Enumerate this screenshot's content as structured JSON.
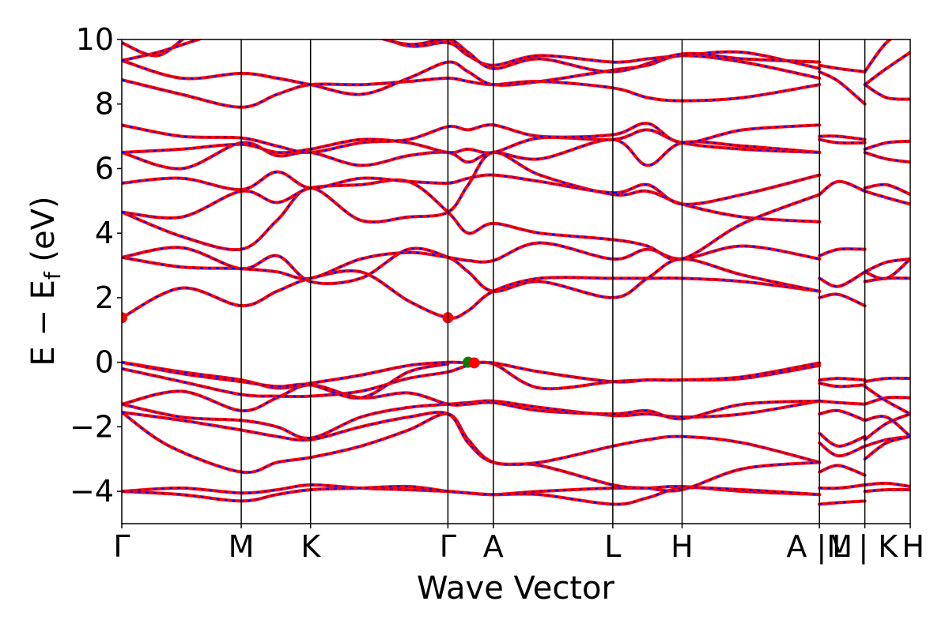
{
  "chart_data": {
    "type": "line",
    "title": "",
    "xlabel": "Wave Vector",
    "ylabel": "E − E_f (eV)",
    "ylabel_parts": {
      "main": "E − E",
      "sub": "f",
      "tail": " (eV)"
    },
    "ylim": [
      -5,
      10
    ],
    "yticks": [
      -4,
      -2,
      0,
      2,
      4,
      6,
      8,
      10
    ],
    "ytick_labels": [
      "−4",
      "−2",
      "0",
      "2",
      "4",
      "6",
      "8",
      "10"
    ],
    "kpoint_labels": [
      {
        "label": "Γ",
        "k": 0.0
      },
      {
        "label": "M",
        "k": 1.0
      },
      {
        "label": "K",
        "k": 1.58
      },
      {
        "label": "Γ",
        "k": 2.73
      },
      {
        "label": "A",
        "k": 3.11
      },
      {
        "label": "L",
        "k": 4.11
      },
      {
        "label": "H",
        "k": 4.69
      },
      {
        "label": "A |M",
        "k": 5.84
      },
      {
        "label": "L | K",
        "k": 6.22
      },
      {
        "label": "H",
        "k": 6.6
      }
    ],
    "xlim": [
      0,
      6.6
    ],
    "series_colors": {
      "primary": "#ff0000",
      "secondary": "#0000ff"
    },
    "markers": [
      {
        "label": "cbm",
        "k": 0.0,
        "E": 1.38,
        "color": "#ff0000"
      },
      {
        "label": "cbm",
        "k": 2.73,
        "E": 1.38,
        "color": "#ff0000"
      },
      {
        "label": "vbm",
        "k": 2.9,
        "E": 0.0,
        "color": "#008000"
      },
      {
        "label": "vbm",
        "k": 2.95,
        "E": -0.02,
        "color": "#ff0000"
      }
    ],
    "bands": [
      {
        "k": [
          0,
          0.5,
          1.0,
          1.3,
          1.58,
          2.0,
          2.4,
          2.73,
          2.9,
          3.11,
          3.5,
          4.11,
          4.4,
          4.69,
          5.2,
          5.84
        ],
        "E": [
          -4.0,
          -3.9,
          -4.05,
          -3.95,
          -3.8,
          -3.9,
          -3.95,
          -4.0,
          -4.05,
          -4.1,
          -4.0,
          -3.9,
          -3.9,
          -3.85,
          -4.0,
          -4.1
        ]
      },
      {
        "k": [
          0,
          0.5,
          1.0,
          1.3,
          1.58,
          2.0,
          2.4,
          2.73,
          2.9,
          3.11,
          3.5,
          4.11,
          4.4,
          4.69,
          5.2,
          5.84
        ],
        "E": [
          -4.0,
          -4.1,
          -4.3,
          -4.1,
          -3.95,
          -3.9,
          -3.85,
          -4.0,
          -4.05,
          -4.1,
          -4.1,
          -4.4,
          -4.2,
          -3.9,
          -3.95,
          -4.1
        ]
      },
      {
        "k": [
          0,
          0.4,
          1.0,
          1.3,
          1.58,
          2.0,
          2.4,
          2.73,
          2.9,
          3.11,
          3.5,
          4.11,
          4.4,
          4.69,
          5.2,
          5.84
        ],
        "E": [
          -1.55,
          -2.6,
          -3.4,
          -3.1,
          -2.95,
          -2.6,
          -2.1,
          -1.6,
          -2.4,
          -3.1,
          -3.2,
          -3.8,
          -3.9,
          -3.95,
          -3.3,
          -3.1
        ]
      },
      {
        "k": [
          0,
          0.5,
          1.0,
          1.3,
          1.58,
          2.0,
          2.4,
          2.73,
          2.9,
          3.11,
          3.5,
          4.11,
          4.4,
          4.69,
          5.2,
          5.84
        ],
        "E": [
          -1.55,
          -1.8,
          -2.1,
          -2.3,
          -2.4,
          -2.0,
          -1.7,
          -1.6,
          -2.5,
          -3.1,
          -3.1,
          -2.6,
          -2.4,
          -2.3,
          -2.5,
          -3.1
        ]
      },
      {
        "k": [
          0,
          0.5,
          1.0,
          1.3,
          1.58,
          2.0,
          2.4,
          2.73,
          2.9,
          3.11,
          3.5,
          4.11,
          4.4,
          4.69,
          5.2,
          5.84
        ],
        "E": [
          -1.3,
          -1.7,
          -1.8,
          -2.0,
          -2.35,
          -1.7,
          -1.4,
          -1.3,
          -1.25,
          -1.2,
          -1.4,
          -1.65,
          -1.6,
          -1.7,
          -1.6,
          -1.2
        ]
      },
      {
        "k": [
          0,
          0.5,
          1.0,
          1.3,
          1.58,
          2.0,
          2.4,
          2.73,
          2.9,
          3.11,
          3.5,
          4.11,
          4.4,
          4.69,
          5.2,
          5.84
        ],
        "E": [
          -1.3,
          -0.9,
          -1.5,
          -1.1,
          -0.7,
          -1.1,
          -0.95,
          -1.3,
          -1.3,
          -1.25,
          -1.5,
          -1.6,
          -1.5,
          -1.75,
          -1.3,
          -1.2
        ]
      },
      {
        "k": [
          0,
          0.5,
          1.0,
          1.3,
          1.58,
          2.0,
          2.4,
          2.73,
          2.9,
          3.11,
          3.5,
          4.11,
          4.4,
          4.69,
          5.2,
          5.84
        ],
        "E": [
          -0.2,
          -0.6,
          -1.0,
          -1.05,
          -1.05,
          -0.9,
          -0.5,
          -0.3,
          -0.1,
          -0.05,
          -0.8,
          -0.6,
          -0.55,
          -0.55,
          -0.5,
          -0.1
        ]
      },
      {
        "k": [
          0,
          0.5,
          1.0,
          1.3,
          1.58,
          2.0,
          2.4,
          2.73,
          2.9,
          3.11,
          3.5,
          4.11,
          4.4,
          4.69,
          5.2,
          5.84
        ],
        "E": [
          0.0,
          -0.3,
          -0.55,
          -0.8,
          -0.65,
          -0.4,
          -0.1,
          0.0,
          -0.02,
          -0.02,
          -0.3,
          -0.6,
          -0.55,
          -0.55,
          -0.45,
          -0.02
        ]
      },
      {
        "k": [
          0,
          0.5,
          1.0,
          1.3,
          1.58,
          2.0,
          2.4,
          2.73
        ],
        "E": [
          0.0,
          -0.35,
          -0.6,
          -0.75,
          -0.7,
          -1.1,
          -0.3,
          -0.05
        ]
      },
      {
        "k": [
          0,
          0.5,
          1.0,
          1.3,
          1.58,
          2.0,
          2.4,
          2.73,
          2.9,
          3.11,
          3.5,
          4.11,
          4.4,
          4.69,
          5.2,
          5.84
        ],
        "E": [
          1.38,
          2.3,
          1.75,
          2.2,
          2.6,
          2.8,
          1.9,
          1.38,
          1.6,
          2.2,
          2.6,
          2.6,
          2.6,
          2.6,
          2.5,
          2.2
        ]
      },
      {
        "k": [
          0,
          0.5,
          1.0,
          1.3,
          1.58,
          2.0,
          2.4,
          2.73,
          2.9,
          3.11,
          3.5,
          4.11,
          4.4,
          4.69,
          5.2,
          5.84
        ],
        "E": [
          3.25,
          3.55,
          2.9,
          3.3,
          2.5,
          2.6,
          3.5,
          3.25,
          2.8,
          2.2,
          2.5,
          2.0,
          2.6,
          3.2,
          2.7,
          2.2
        ]
      },
      {
        "k": [
          0,
          0.5,
          1.0,
          1.3,
          1.58,
          2.0,
          2.4,
          2.73,
          2.9,
          3.11,
          3.5,
          4.11,
          4.4,
          4.69,
          5.2,
          5.84
        ],
        "E": [
          3.25,
          2.95,
          2.9,
          2.8,
          2.6,
          3.2,
          3.4,
          3.25,
          3.15,
          3.15,
          3.7,
          3.2,
          3.5,
          3.2,
          3.6,
          3.2
        ]
      },
      {
        "k": [
          0,
          0.5,
          1.0,
          1.3,
          1.58,
          2.0,
          2.4,
          2.73,
          2.9,
          3.11,
          3.5,
          4.11,
          4.4,
          4.69,
          5.2,
          5.84
        ],
        "E": [
          4.65,
          3.9,
          3.5,
          4.4,
          5.4,
          4.4,
          4.5,
          4.65,
          5.5,
          6.5,
          5.8,
          5.2,
          5.3,
          4.9,
          4.5,
          4.35
        ]
      },
      {
        "k": [
          0,
          0.5,
          1.0,
          1.3,
          1.58,
          2.0,
          2.4,
          2.73,
          2.9,
          3.11,
          3.5,
          4.11,
          4.4,
          4.69,
          5.2,
          5.84
        ],
        "E": [
          4.65,
          4.5,
          5.3,
          4.95,
          5.4,
          5.5,
          5.6,
          4.65,
          4.0,
          4.3,
          4.0,
          3.8,
          3.6,
          3.2,
          4.3,
          5.2
        ]
      },
      {
        "k": [
          0,
          0.5,
          1.0,
          1.3,
          1.58,
          2.0,
          2.4,
          2.73,
          2.9,
          3.11,
          3.5,
          4.11,
          4.4,
          4.69,
          5.2,
          5.84
        ],
        "E": [
          5.55,
          5.7,
          5.35,
          5.9,
          5.4,
          5.7,
          5.6,
          5.55,
          5.7,
          5.8,
          5.6,
          5.25,
          5.5,
          4.9,
          5.2,
          5.8
        ]
      },
      {
        "k": [
          0,
          0.5,
          1.0,
          1.3,
          1.58,
          2.0,
          2.4,
          2.73,
          2.9,
          3.11,
          3.5,
          4.11,
          4.4,
          4.69,
          5.2,
          5.84
        ],
        "E": [
          6.5,
          6.0,
          6.8,
          6.4,
          6.5,
          6.1,
          6.4,
          6.5,
          6.2,
          6.5,
          6.3,
          6.9,
          6.1,
          6.8,
          6.7,
          6.5
        ]
      },
      {
        "k": [
          0,
          0.5,
          1.0,
          1.3,
          1.58,
          2.0,
          2.4,
          2.73,
          2.9,
          3.11,
          3.5,
          4.11,
          4.4,
          4.69,
          5.2,
          5.84
        ],
        "E": [
          6.5,
          6.6,
          6.75,
          6.5,
          6.6,
          6.9,
          6.8,
          6.5,
          6.6,
          6.5,
          6.95,
          6.9,
          7.2,
          6.8,
          6.6,
          6.5
        ]
      },
      {
        "k": [
          0,
          0.5,
          1.0,
          1.3,
          1.58,
          2.0,
          2.4,
          2.73,
          2.9,
          3.11,
          3.5,
          4.11,
          4.4,
          4.69,
          5.2,
          5.84
        ],
        "E": [
          7.35,
          7.0,
          6.95,
          6.7,
          6.5,
          6.8,
          6.9,
          7.3,
          7.2,
          7.35,
          7.0,
          7.05,
          7.4,
          6.8,
          7.2,
          7.35
        ]
      },
      {
        "k": [
          0,
          0.5,
          1.0,
          1.3,
          1.58,
          2.0,
          2.4,
          2.73,
          2.9,
          3.11,
          3.5,
          4.11,
          4.4,
          4.69,
          5.2,
          5.84
        ],
        "E": [
          8.75,
          8.3,
          7.9,
          8.3,
          8.6,
          8.6,
          8.7,
          8.8,
          8.7,
          8.6,
          8.7,
          8.5,
          8.2,
          8.1,
          8.2,
          8.6
        ]
      },
      {
        "k": [
          0,
          0.5,
          1.0,
          1.3,
          1.58,
          2.0,
          2.4,
          2.73,
          2.9,
          3.11,
          3.5,
          4.11,
          4.4,
          4.69,
          5.2,
          5.84
        ],
        "E": [
          9.35,
          8.8,
          8.95,
          8.8,
          8.6,
          8.3,
          8.8,
          9.3,
          9.0,
          8.6,
          8.7,
          9.05,
          9.2,
          9.5,
          9.3,
          8.8
        ]
      },
      {
        "k": [
          0,
          0.3,
          0.6,
          1.0,
          1.3,
          1.58,
          2.0,
          2.4,
          2.73,
          2.9,
          3.11,
          3.5,
          4.11,
          4.4,
          4.69,
          5.2,
          5.84
        ],
        "E": [
          9.9,
          9.5,
          10.2,
          10.5,
          10.6,
          10.5,
          10.3,
          9.8,
          9.9,
          9.5,
          9.2,
          9.5,
          9.3,
          9.4,
          9.5,
          9.6,
          9.1
        ]
      },
      {
        "k": [
          0,
          0.3,
          0.6,
          1.0,
          1.58,
          2.0,
          2.4,
          2.73,
          2.9,
          3.11,
          3.5,
          4.11,
          4.69,
          5.2,
          5.84
        ],
        "E": [
          9.35,
          9.6,
          9.95,
          10.4,
          10.5,
          10.2,
          9.85,
          10.0,
          9.6,
          9.1,
          9.4,
          9.0,
          9.55,
          9.4,
          9.3
        ]
      },
      {
        "k": [
          5.84,
          6.0,
          6.22
        ],
        "E": [
          -0.55,
          -0.5,
          -0.55
        ]
      },
      {
        "k": [
          5.84,
          6.0,
          6.22
        ],
        "E": [
          -0.65,
          -0.75,
          -0.7
        ]
      },
      {
        "k": [
          5.84,
          6.0,
          6.22
        ],
        "E": [
          -1.2,
          -1.25,
          -1.3
        ]
      },
      {
        "k": [
          5.84,
          6.0,
          6.22
        ],
        "E": [
          -1.6,
          -1.5,
          -1.8
        ]
      },
      {
        "k": [
          5.84,
          6.0,
          6.22
        ],
        "E": [
          -2.2,
          -2.6,
          -2.3
        ]
      },
      {
        "k": [
          5.84,
          6.0,
          6.22
        ],
        "E": [
          -2.5,
          -2.9,
          -2.6
        ]
      },
      {
        "k": [
          5.84,
          6.0,
          6.22
        ],
        "E": [
          -3.4,
          -3.2,
          -3.5
        ]
      },
      {
        "k": [
          5.84,
          6.0,
          6.22
        ],
        "E": [
          -3.9,
          -3.9,
          -3.8
        ]
      },
      {
        "k": [
          5.84,
          6.0,
          6.22
        ],
        "E": [
          -4.4,
          -4.35,
          -4.3
        ]
      },
      {
        "k": [
          5.84,
          6.0,
          6.22
        ],
        "E": [
          2.0,
          2.1,
          1.75
        ]
      },
      {
        "k": [
          5.84,
          6.0,
          6.22
        ],
        "E": [
          2.6,
          2.35,
          2.8
        ]
      },
      {
        "k": [
          5.84,
          6.0,
          6.22
        ],
        "E": [
          3.3,
          3.5,
          3.5
        ]
      },
      {
        "k": [
          5.84,
          6.0,
          6.22
        ],
        "E": [
          5.2,
          5.6,
          5.3
        ]
      },
      {
        "k": [
          5.84,
          6.0,
          6.22
        ],
        "E": [
          6.9,
          6.8,
          6.8
        ]
      },
      {
        "k": [
          5.84,
          6.0,
          6.22
        ],
        "E": [
          7.0,
          7.0,
          6.9
        ]
      },
      {
        "k": [
          5.84,
          6.0,
          6.22
        ],
        "E": [
          9.0,
          8.7,
          8.0
        ]
      },
      {
        "k": [
          5.84,
          6.0,
          6.22
        ],
        "E": [
          9.2,
          9.1,
          9.0
        ]
      },
      {
        "k": [
          6.22,
          6.4,
          6.6
        ],
        "E": [
          -0.6,
          -0.5,
          -0.5
        ]
      },
      {
        "k": [
          6.22,
          6.4,
          6.6
        ],
        "E": [
          -0.75,
          -1.2,
          -1.6
        ]
      },
      {
        "k": [
          6.22,
          6.4,
          6.6
        ],
        "E": [
          -1.3,
          -1.1,
          -1.1
        ]
      },
      {
        "k": [
          6.22,
          6.4,
          6.6
        ],
        "E": [
          -1.8,
          -1.7,
          -2.3
        ]
      },
      {
        "k": [
          6.22,
          6.4,
          6.6
        ],
        "E": [
          -2.4,
          -1.9,
          -1.6
        ]
      },
      {
        "k": [
          6.22,
          6.4,
          6.6
        ],
        "E": [
          -2.6,
          -2.4,
          -2.3
        ]
      },
      {
        "k": [
          6.22,
          6.4,
          6.6
        ],
        "E": [
          -3.0,
          -2.5,
          -2.3
        ]
      },
      {
        "k": [
          6.22,
          6.4,
          6.6
        ],
        "E": [
          -3.8,
          -3.75,
          -3.85
        ]
      },
      {
        "k": [
          6.22,
          6.4,
          6.6
        ],
        "E": [
          -4.0,
          -3.95,
          -3.95
        ]
      },
      {
        "k": [
          6.22,
          6.4,
          6.6
        ],
        "E": [
          2.5,
          2.6,
          2.6
        ]
      },
      {
        "k": [
          6.22,
          6.4,
          6.6
        ],
        "E": [
          2.8,
          2.6,
          3.2
        ]
      },
      {
        "k": [
          6.22,
          6.4,
          6.6
        ],
        "E": [
          2.8,
          3.1,
          3.2
        ]
      },
      {
        "k": [
          6.22,
          6.4,
          6.6
        ],
        "E": [
          5.3,
          5.1,
          4.9
        ]
      },
      {
        "k": [
          6.22,
          6.4,
          6.6
        ],
        "E": [
          5.4,
          5.5,
          5.2
        ]
      },
      {
        "k": [
          6.22,
          6.4,
          6.6
        ],
        "E": [
          6.5,
          6.3,
          6.2
        ]
      },
      {
        "k": [
          6.22,
          6.4,
          6.6
        ],
        "E": [
          6.6,
          6.8,
          6.85
        ]
      },
      {
        "k": [
          6.22,
          6.4,
          6.6
        ],
        "E": [
          8.6,
          8.2,
          8.15
        ]
      },
      {
        "k": [
          6.22,
          6.4,
          6.6
        ],
        "E": [
          8.6,
          9.1,
          9.6
        ]
      },
      {
        "k": [
          6.22,
          6.4,
          6.6
        ],
        "E": [
          9.0,
          9.9,
          10.4
        ]
      }
    ]
  }
}
